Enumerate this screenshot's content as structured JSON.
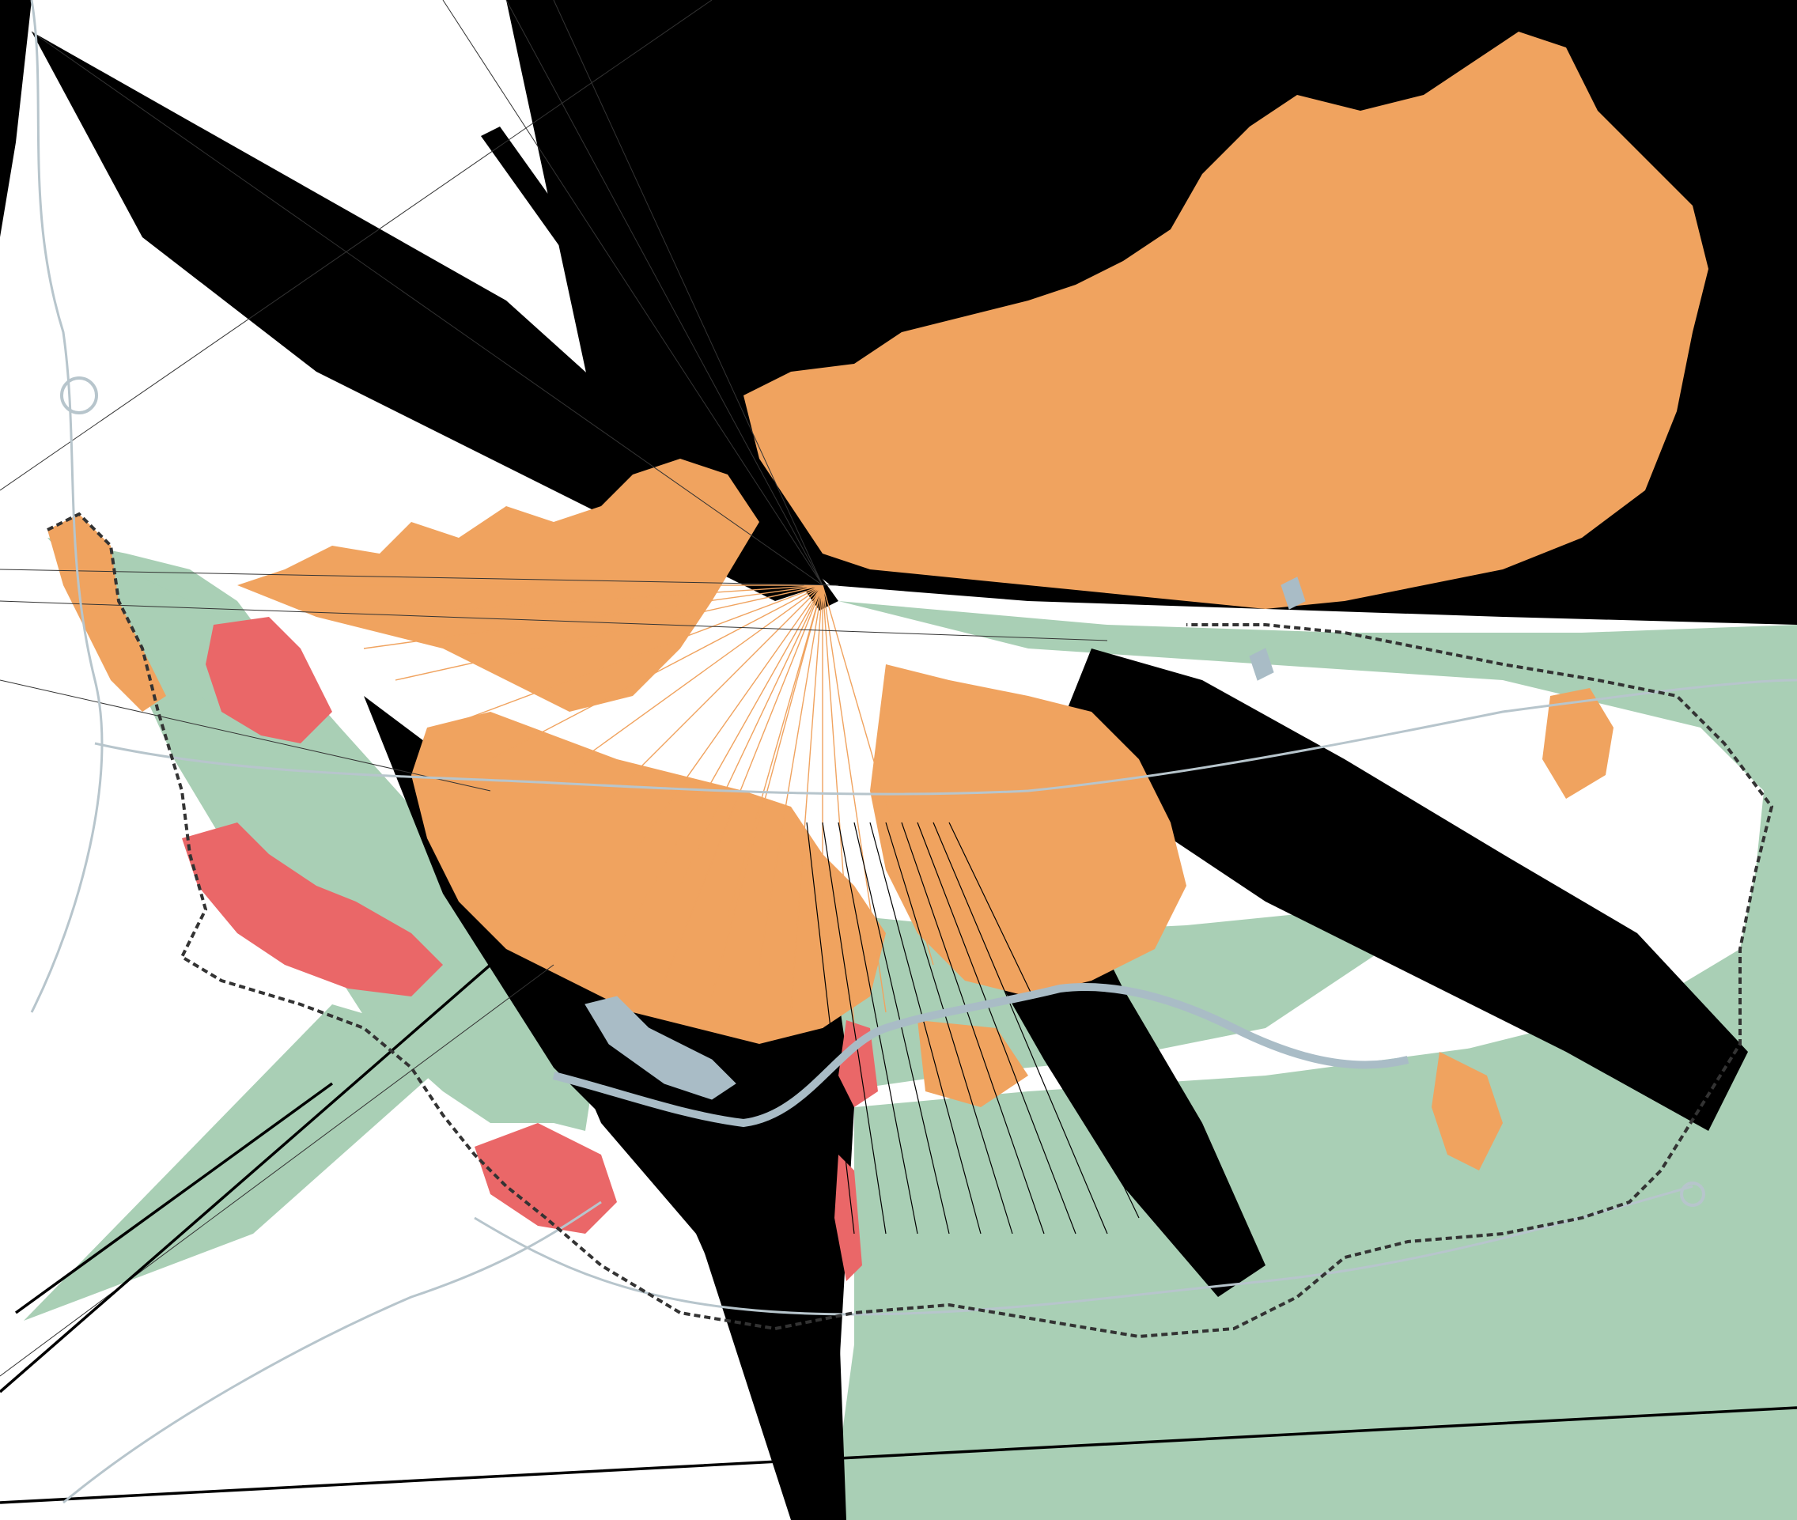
{
  "map": {
    "colors": {
      "background": "#ffffff",
      "wedge": "#000000",
      "green_zone": "#a9cfb5",
      "orange_zone": "#f0a35f",
      "red_zone": "#ea6768",
      "water": "#a9bcc6",
      "road": "#b7c5cc",
      "boundary": "#333333"
    },
    "layers": [
      "background",
      "black-wedges",
      "green-zones",
      "orange-zones",
      "red-zones",
      "radial-lines",
      "water",
      "roads",
      "municipal-boundary"
    ]
  }
}
